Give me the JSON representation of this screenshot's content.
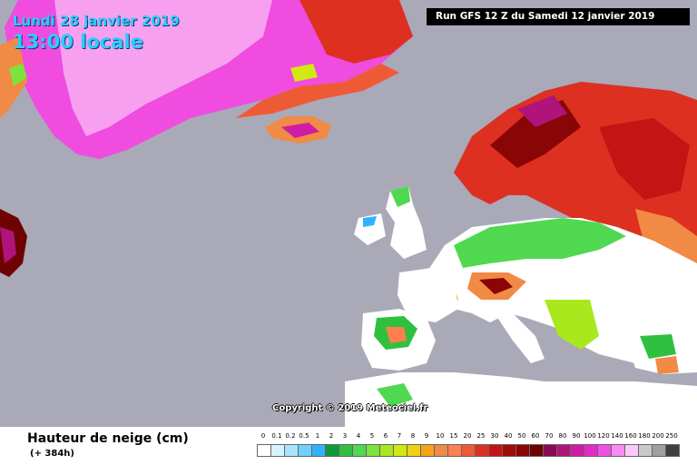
{
  "header": {
    "date": "Lundi 28 janvier 2019",
    "time": "13:00 locale",
    "run": "Run GFS 12 Z du Samedi 12 janvier 2019"
  },
  "copyright": "Copyright © 2019 Meteociel.fr",
  "legend": {
    "title": "Hauteur de neige (cm)",
    "subtitle": "(+ 384h)",
    "scale": [
      {
        "label": "0",
        "color": "#ffffff"
      },
      {
        "label": "0.1",
        "color": "#d6f4ff"
      },
      {
        "label": "0.2",
        "color": "#a8e4ff"
      },
      {
        "label": "0.5",
        "color": "#6fd0ff"
      },
      {
        "label": "1",
        "color": "#2fb3ff"
      },
      {
        "label": "2",
        "color": "#0f9a3a"
      },
      {
        "label": "3",
        "color": "#30c040"
      },
      {
        "label": "4",
        "color": "#50d850"
      },
      {
        "label": "5",
        "color": "#7ee23c"
      },
      {
        "label": "6",
        "color": "#a8e81c"
      },
      {
        "label": "7",
        "color": "#d2e812"
      },
      {
        "label": "8",
        "color": "#f0d010"
      },
      {
        "label": "9",
        "color": "#f5a418"
      },
      {
        "label": "10",
        "color": "#f08a44"
      },
      {
        "label": "15",
        "color": "#ff7f50"
      },
      {
        "label": "20",
        "color": "#ee5a36"
      },
      {
        "label": "25",
        "color": "#dd3020"
      },
      {
        "label": "30",
        "color": "#c41414"
      },
      {
        "label": "40",
        "color": "#a50a0a"
      },
      {
        "label": "50",
        "color": "#8a0606"
      },
      {
        "label": "60",
        "color": "#6e0202"
      },
      {
        "label": "70",
        "color": "#8a0a52"
      },
      {
        "label": "80",
        "color": "#b0147c"
      },
      {
        "label": "90",
        "color": "#cf1ca5"
      },
      {
        "label": "100",
        "color": "#e628c8"
      },
      {
        "label": "120",
        "color": "#f050e8"
      },
      {
        "label": "140",
        "color": "#f88cf4"
      },
      {
        "label": "160",
        "color": "#fdc8fc"
      },
      {
        "label": "180",
        "color": "#c8c8c8"
      },
      {
        "label": "200",
        "color": "#a0a0a0"
      },
      {
        "label": "250",
        "color": "#404040"
      }
    ]
  }
}
